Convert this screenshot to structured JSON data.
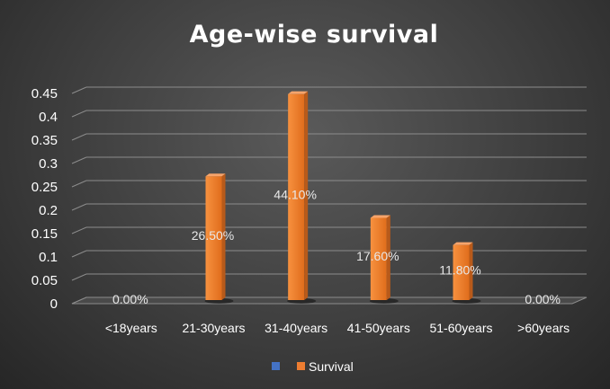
{
  "chart_data": {
    "type": "bar",
    "title": "Age-wise survival",
    "categories": [
      "<18years",
      "21-30years",
      "31-40years",
      "41-50years",
      "51-60years",
      ">60years"
    ],
    "series": [
      {
        "name": "",
        "values": [
          0,
          0,
          0,
          0,
          0,
          0
        ],
        "color": "#4472c4"
      },
      {
        "name": "Survival",
        "values": [
          0.0,
          0.265,
          0.441,
          0.176,
          0.118,
          0.0
        ],
        "color": "#ed7d31"
      }
    ],
    "data_labels": [
      "0.00%",
      "26.50%",
      "44.10%",
      "17.60%",
      "11.80%",
      "0.00%"
    ],
    "y_ticks": [
      "0",
      "0.05",
      "0.1",
      "0.15",
      "0.2",
      "0.25",
      "0.3",
      "0.35",
      "0.4",
      "0.45"
    ],
    "ylim": [
      0,
      0.45
    ],
    "grid": true,
    "legend_position": "bottom",
    "style": "3d-column"
  }
}
